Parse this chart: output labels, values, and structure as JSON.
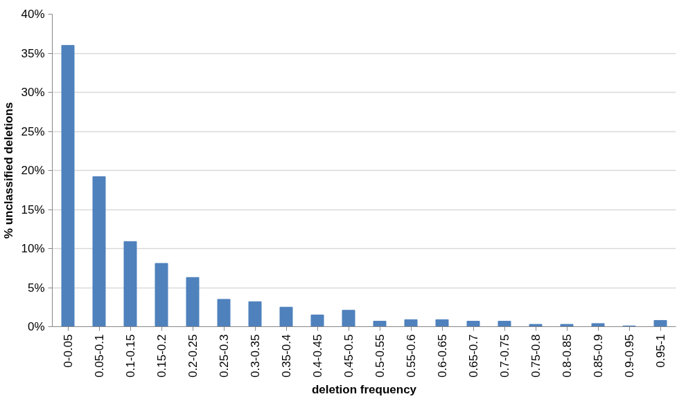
{
  "chart_data": {
    "type": "bar",
    "xlabel": "deletion frequency",
    "ylabel": "% unclassified deletions",
    "categories": [
      "0-0.05",
      "0.05-0.1",
      "0.1-0.15",
      "0.15-0.2",
      "0.2-0.25",
      "0.25-0.3",
      "0.3-0.35",
      "0.35-0.4",
      "0.4-0.45",
      "0.45-0.5",
      "0.5-0.55",
      "0.55-0.6",
      "0.6-0.65",
      "0.65-0.7",
      "0.7-0.75",
      "0.75-0.8",
      "0.8-0.85",
      "0.85-0.9",
      "0.9-0.95",
      "0.95-1"
    ],
    "values": [
      36.0,
      19.2,
      10.9,
      8.1,
      6.3,
      3.5,
      3.2,
      2.5,
      1.5,
      2.1,
      0.7,
      0.9,
      0.9,
      0.7,
      0.7,
      0.3,
      0.3,
      0.4,
      0.1,
      0.8
    ],
    "color": "#4f81bd",
    "ylim": [
      0,
      40
    ],
    "yticks": [
      {
        "value": 0,
        "label": "0%"
      },
      {
        "value": 5,
        "label": "5%"
      },
      {
        "value": 10,
        "label": "10%"
      },
      {
        "value": 15,
        "label": "15%"
      },
      {
        "value": 20,
        "label": "20%"
      },
      {
        "value": 25,
        "label": "25%"
      },
      {
        "value": 30,
        "label": "30%"
      },
      {
        "value": 35,
        "label": "35%"
      },
      {
        "value": 40,
        "label": "40%"
      }
    ],
    "grid": "y"
  }
}
